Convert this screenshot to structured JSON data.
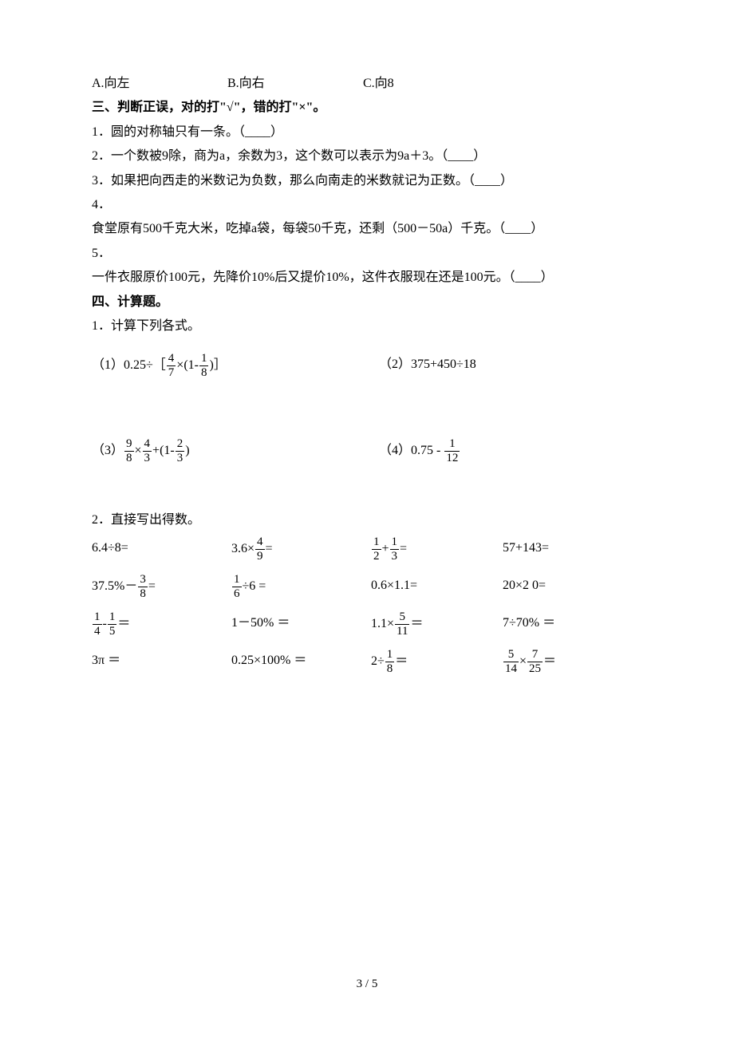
{
  "options": {
    "a": "A.向左",
    "b": "B.向右",
    "c": "C.向8"
  },
  "section3": {
    "title": "三、判断正误，对的打\"√\"，错的打\"×\"。",
    "q1": "1．圆的对称轴只有一条。（____）",
    "q2": "2．一个数被9除，商为a，余数为3，这个数可以表示为9a＋3。（____）",
    "q3": "3．如果把向西走的米数记为负数，那么向南走的米数就记为正数。（____）",
    "q4n": "4．",
    "q4": "食堂原有500千克大米，吃掉a袋，每袋50千克，还剩（500－50a）千克。（____）",
    "q5n": "5．",
    "q5": "一件衣服原价100元，先降价10%后又提价10%，这件衣服现在还是100元。（____）"
  },
  "section4": {
    "title": "四、计算题。",
    "q1": "1．计算下列各式。",
    "p1_pre": "（1）0.25÷［",
    "p1_mid": "×(1-",
    "p1_post": ")］",
    "p2": "（2）375+450÷18",
    "p3_pre": "（3）",
    "p3_a": "×",
    "p3_b": "+(1-",
    "p3_c": ")",
    "p4_pre": "（4）0.75 - ",
    "q2": "2．直接写出得数。",
    "m": [
      [
        "6.4÷8=",
        "3.6×__F4_9__=",
        "__F1_2__+__F1_3__=",
        "57+143="
      ],
      [
        "37.5%－__F3_8__=",
        "__F1_6__÷6 =",
        "0.6×1.1=",
        "20×2 0="
      ],
      [
        "__F1_4__-__F1_5__＝",
        "1－50% ＝",
        "1.1×__F5_11__＝",
        "7÷70% ＝"
      ],
      [
        "3π ＝",
        "0.25×100% ＝",
        "2÷__F1_8__＝",
        "__F5_14__×__F7_25__＝"
      ]
    ]
  },
  "fracs": {
    "F4_7": {
      "n": "4",
      "d": "7"
    },
    "F1_8": {
      "n": "1",
      "d": "8"
    },
    "F9_8": {
      "n": "9",
      "d": "8"
    },
    "F4_3": {
      "n": "4",
      "d": "3"
    },
    "F2_3": {
      "n": "2",
      "d": "3"
    },
    "F1_12": {
      "n": "1",
      "d": "12"
    },
    "F4_9": {
      "n": "4",
      "d": "9"
    },
    "F1_2": {
      "n": "1",
      "d": "2"
    },
    "F1_3": {
      "n": "1",
      "d": "3"
    },
    "F3_8": {
      "n": "3",
      "d": "8"
    },
    "F1_6": {
      "n": "1",
      "d": "6"
    },
    "F1_4": {
      "n": "1",
      "d": "4"
    },
    "F1_5": {
      "n": "1",
      "d": "5"
    },
    "F5_11": {
      "n": "5",
      "d": "11"
    },
    "F5_14": {
      "n": "5",
      "d": "14"
    },
    "F7_25": {
      "n": "7",
      "d": "25"
    }
  },
  "pagenum": "3 / 5"
}
